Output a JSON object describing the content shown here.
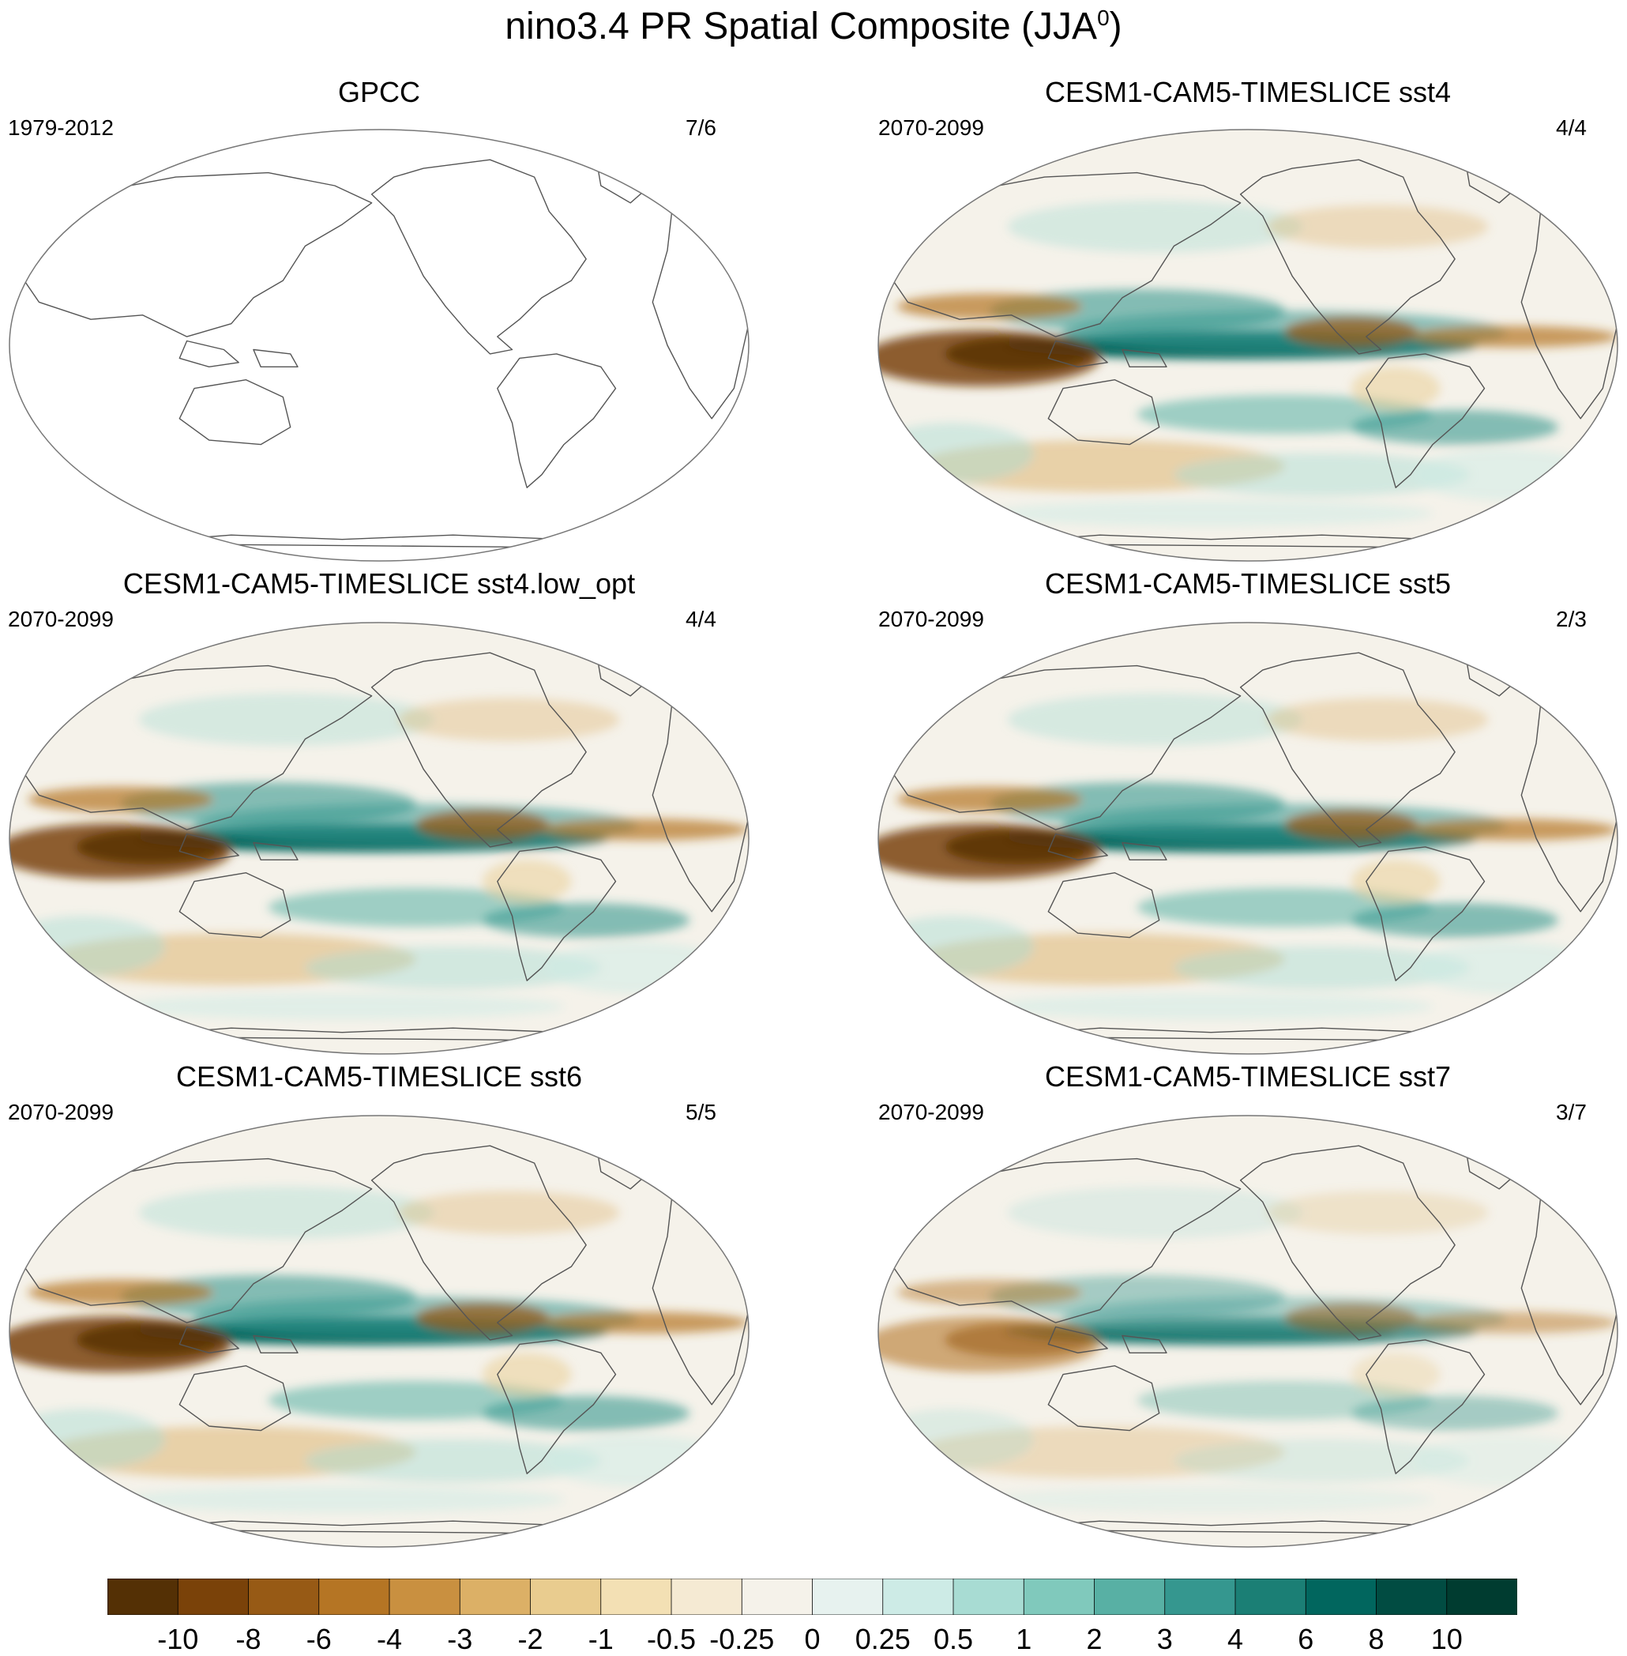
{
  "title": {
    "text": "nino3.4 PR Spatial Composite (JJA",
    "sup": "0",
    "close": ")"
  },
  "panels": [
    {
      "title": "GPCC",
      "left": "1979-2012",
      "right": "7/6",
      "pattern": "empty"
    },
    {
      "title": "CESM1-CAM5-TIMESLICE sst4",
      "left": "2070-2099",
      "right": "4/4",
      "pattern": "model"
    },
    {
      "title": "CESM1-CAM5-TIMESLICE sst4.low_opt",
      "left": "2070-2099",
      "right": "4/4",
      "pattern": "model"
    },
    {
      "title": "CESM1-CAM5-TIMESLICE sst5",
      "left": "2070-2099",
      "right": "2/3",
      "pattern": "model"
    },
    {
      "title": "CESM1-CAM5-TIMESLICE sst6",
      "left": "2070-2099",
      "right": "5/5",
      "pattern": "model"
    },
    {
      "title": "CESM1-CAM5-TIMESLICE sst7",
      "left": "2070-2099",
      "right": "3/7",
      "pattern": "model-weak"
    }
  ],
  "colorbar": {
    "labels": [
      "-10",
      "-8",
      "-6",
      "-4",
      "-3",
      "-2",
      "-1",
      "-0.5",
      "-0.25",
      "0",
      "0.25",
      "0.5",
      "1",
      "2",
      "3",
      "4",
      "6",
      "8",
      "10"
    ],
    "colors": [
      "#543005",
      "#7a4209",
      "#975a15",
      "#b57524",
      "#c99040",
      "#dcb066",
      "#e9cc8f",
      "#f3e0b4",
      "#f5ead3",
      "#f5f2ea",
      "#e7f2ef",
      "#cdebe6",
      "#a8dcd3",
      "#80c9bc",
      "#58b0a4",
      "#35978f",
      "#1b7f75",
      "#01665e",
      "#014c42",
      "#003c30"
    ]
  }
}
